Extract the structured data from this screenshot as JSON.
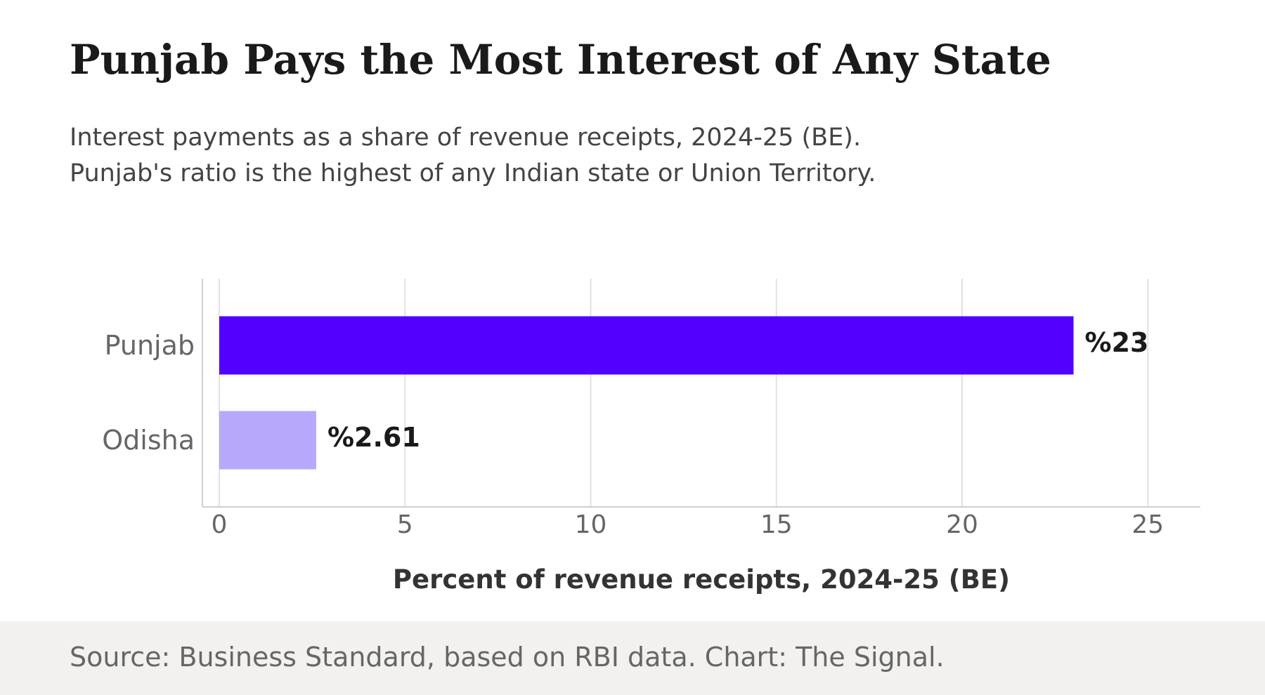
{
  "header": {
    "title": "Punjab Pays the Most Interest of Any State",
    "subtitle_line1": "Interest payments as a share of revenue receipts, 2024-25 (BE).",
    "subtitle_line2": "Punjab's ratio is the highest of any Indian state or Union Territory."
  },
  "footer": {
    "source": "Source: Business Standard, based on RBI data. Chart: The Signal."
  },
  "chart_data": {
    "type": "bar",
    "orientation": "horizontal",
    "categories": [
      "Punjab",
      "Odisha"
    ],
    "values": [
      23,
      2.61
    ],
    "value_labels": [
      "%23",
      "%2.61"
    ],
    "bar_colors": [
      "#5200ff",
      "#b8a8fc"
    ],
    "xlabel": "Percent of revenue receipts, 2024-25 (BE)",
    "ylabel": "",
    "xlim": [
      0,
      25
    ],
    "xticks": [
      0,
      5,
      10,
      15,
      20,
      25
    ],
    "grid": "vertical",
    "legend": "none"
  }
}
